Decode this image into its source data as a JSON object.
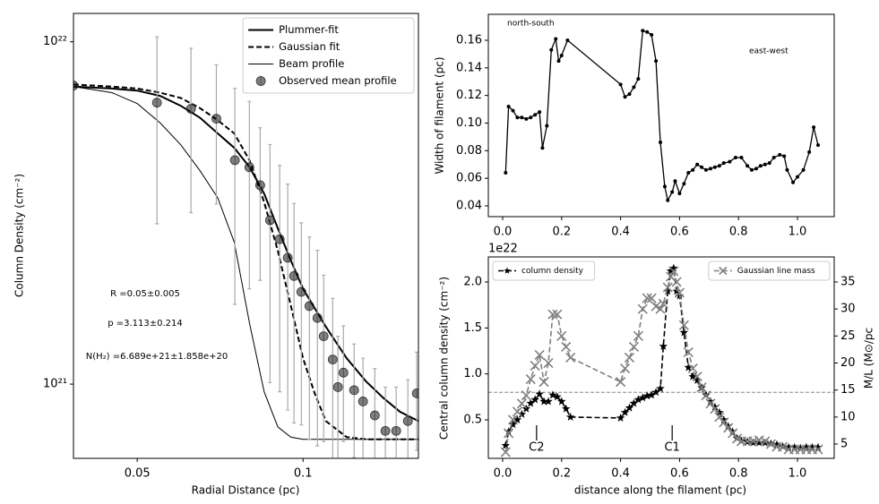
{
  "chart_data": [
    {
      "type": "line",
      "xscale": "log",
      "yscale": "log",
      "xlabel": "Radial Distance (pc)",
      "ylabel": "Column Density (cm⁻²)",
      "xlim": [
        0.0383,
        0.162
      ],
      "ylim": [
        6.07e+20,
        1.21e+22
      ],
      "xticks": [
        0.05,
        0.1
      ],
      "yticks": [
        {
          "value": 1e+21,
          "label": "10²¹"
        },
        {
          "value": 1e+22,
          "label": "10²²"
        }
      ],
      "legend": "upper right",
      "annotations": [
        "R =0.05±0.005",
        "p =3.113±0.214",
        "N(H₂) =6.689e+21±1.858e+20"
      ],
      "series": [
        {
          "name": "Plummer-fit",
          "color": "#000000",
          "linestyle": "solid",
          "linewidth": 2,
          "marker": "none",
          "x": [
            0.0383,
            0.045,
            0.05,
            0.055,
            0.06,
            0.065,
            0.07,
            0.075,
            0.08,
            0.085,
            0.09,
            0.095,
            0.1,
            0.11,
            0.12,
            0.13,
            0.14,
            0.15,
            0.162
          ],
          "values": [
            7.4e+21,
            7.3e+21,
            7.2e+21,
            6.95e+21,
            6.5e+21,
            6e+21,
            5.4e+21,
            4.9e+21,
            4.3e+21,
            3.6e+21,
            2.85e+21,
            2.3e+21,
            1.9e+21,
            1.47e+21,
            1.19e+21,
            1.02e+21,
            9.1e+20,
            8.3e+20,
            7.8e+20
          ]
        },
        {
          "name": "Gaussian fit",
          "color": "#000000",
          "linestyle": "dashed",
          "linewidth": 2,
          "marker": "none",
          "x": [
            0.0383,
            0.045,
            0.05,
            0.055,
            0.06,
            0.065,
            0.07,
            0.075,
            0.08,
            0.085,
            0.09,
            0.095,
            0.1,
            0.105,
            0.11,
            0.12,
            0.13,
            0.14,
            0.15,
            0.162
          ],
          "values": [
            7.5e+21,
            7.4e+21,
            7.3e+21,
            7.1e+21,
            6.85e+21,
            6.4e+21,
            5.9e+21,
            5.4e+21,
            4.5e+21,
            3.4e+21,
            2.45e+21,
            1.7e+21,
            1.19e+21,
            9.4e+20,
            7.8e+20,
            7e+20,
            6.9e+20,
            6.9e+20,
            6.9e+20,
            6.9e+20
          ]
        },
        {
          "name": "Beam profile",
          "color": "#000000",
          "linestyle": "solid",
          "linewidth": 1,
          "marker": "none",
          "x": [
            0.0383,
            0.045,
            0.05,
            0.055,
            0.06,
            0.065,
            0.07,
            0.075,
            0.08,
            0.085,
            0.09,
            0.095,
            0.1,
            0.11,
            0.12,
            0.13,
            0.14,
            0.15,
            0.162
          ],
          "values": [
            7.4e+21,
            7.1e+21,
            6.6e+21,
            5.8e+21,
            5e+21,
            4.2e+21,
            3.5e+21,
            2.6e+21,
            1.5e+21,
            9.5e+20,
            7.5e+20,
            7e+20,
            6.9e+20,
            6.9e+20,
            6.9e+20,
            6.9e+20,
            6.9e+20,
            6.9e+20,
            6.9e+20
          ]
        },
        {
          "name": "Observed mean profile",
          "color": "#555555",
          "linestyle": "none",
          "marker": "o",
          "x": [
            0.0383,
            0.0543,
            0.0626,
            0.0696,
            0.0752,
            0.0799,
            0.0836,
            0.0871,
            0.0907,
            0.0938,
            0.0963,
            0.0993,
            0.1027,
            0.1062,
            0.109,
            0.1132,
            0.1157,
            0.1184,
            0.1238,
            0.1285,
            0.135,
            0.1411,
            0.1476,
            0.155,
            0.1609
          ],
          "values": [
            7.45e+21,
            6.64e+21,
            6.37e+21,
            5.96e+21,
            4.51e+21,
            4.3e+21,
            3.81e+21,
            3.01e+21,
            2.65e+21,
            2.34e+21,
            2.07e+21,
            1.86e+21,
            1.69e+21,
            1.56e+21,
            1.38e+21,
            1.18e+21,
            9.8e+20,
            1.08e+21,
            9.6e+20,
            8.9e+20,
            8.1e+20,
            7.3e+20,
            7.3e+20,
            7.8e+20,
            9.4e+20
          ],
          "errors": [
            0,
            3.7e+21,
            3.2e+21,
            2.6e+21,
            2.8e+21,
            2.4e+21,
            1.8e+21,
            2e+21,
            1.7e+21,
            1.5e+21,
            1.3e+21,
            1.1e+21,
            1e+21,
            9e+20,
            7e+20,
            6e+20,
            4e+20,
            4e+20,
            3.5e+20,
            3e+20,
            3e+20,
            2.5e+20,
            2.5e+20,
            2.5e+20,
            3e+20
          ]
        }
      ]
    },
    {
      "type": "line",
      "ylabel": "Width of filament (pc)",
      "xlim": [
        -0.0486,
        1.1246
      ],
      "ylim": [
        0.0322,
        0.1788
      ],
      "xticks": [
        {
          "value": 0,
          "label": "0.0"
        },
        0.2,
        0.4,
        0.6,
        0.8,
        {
          "value": 1,
          "label": "1.0"
        }
      ],
      "yticks": [
        0.04,
        0.06,
        0.08,
        {
          "value": 0.1,
          "label": "0.10"
        },
        0.12,
        0.14,
        0.16
      ],
      "annotations": [
        "north-south",
        "east-west"
      ],
      "x": [
        0.01,
        0.02,
        0.035,
        0.05,
        0.065,
        0.08,
        0.095,
        0.11,
        0.125,
        0.135,
        0.15,
        0.165,
        0.18,
        0.19,
        0.2,
        0.22,
        0.4,
        0.415,
        0.43,
        0.445,
        0.46,
        0.475,
        0.49,
        0.505,
        0.52,
        0.535,
        0.55,
        0.56,
        0.575,
        0.585,
        0.6,
        0.615,
        0.63,
        0.645,
        0.66,
        0.675,
        0.69,
        0.705,
        0.72,
        0.735,
        0.75,
        0.77,
        0.79,
        0.81,
        0.83,
        0.845,
        0.86,
        0.875,
        0.89,
        0.905,
        0.92,
        0.94,
        0.955,
        0.965,
        0.985,
        1.0,
        1.02,
        1.04,
        1.055,
        1.07
      ],
      "series": [
        {
          "color": "#000000",
          "linestyle": "solid",
          "linewidth": 1.3,
          "marker": ".",
          "values": [
            0.064,
            0.112,
            0.109,
            0.104,
            0.104,
            0.103,
            0.104,
            0.106,
            0.108,
            0.082,
            0.098,
            0.153,
            0.161,
            0.145,
            0.149,
            0.16,
            0.128,
            0.119,
            0.121,
            0.126,
            0.132,
            0.167,
            0.166,
            0.164,
            0.145,
            0.086,
            0.054,
            0.044,
            0.05,
            0.058,
            0.049,
            0.056,
            0.064,
            0.066,
            0.07,
            0.068,
            0.066,
            0.067,
            0.068,
            0.069,
            0.071,
            0.072,
            0.075,
            0.075,
            0.069,
            0.066,
            0.067,
            0.069,
            0.07,
            0.071,
            0.075,
            0.077,
            0.076,
            0.066,
            0.057,
            0.061,
            0.066,
            0.079,
            0.097,
            0.084
          ]
        }
      ]
    },
    {
      "type": "line",
      "xlabel": "distance along the filament (pc)",
      "ylabel": "Central column density (cm⁻²)",
      "y2label": "M/L (M⊙/pc",
      "offset_text": "1e22",
      "xlim": [
        -0.0486,
        1.1246
      ],
      "ylim": [
        0.081,
        2.273
      ],
      "y2lim": [
        2.35,
        39.64
      ],
      "xticks": [
        {
          "value": 0,
          "label": "0.0"
        },
        0.2,
        0.4,
        0.6,
        0.8,
        {
          "value": 1,
          "label": "1.0"
        }
      ],
      "yticks": [
        0.5,
        {
          "value": 1,
          "label": "1.0"
        },
        1.5,
        {
          "value": 2,
          "label": "2.0"
        }
      ],
      "y2ticks": [
        5,
        10,
        15,
        20,
        25,
        30,
        35
      ],
      "legend": "upper left",
      "y2_legend": "upper right",
      "hline": 0.8,
      "cores": [
        {
          "label": "C2",
          "x": 0.115
        },
        {
          "label": "C1",
          "x": 0.575
        }
      ],
      "x": [
        0.01,
        0.02,
        0.035,
        0.05,
        0.065,
        0.08,
        0.095,
        0.11,
        0.125,
        0.14,
        0.155,
        0.17,
        0.185,
        0.2,
        0.215,
        0.23,
        0.4,
        0.415,
        0.43,
        0.445,
        0.46,
        0.475,
        0.49,
        0.505,
        0.52,
        0.535,
        0.545,
        0.56,
        0.57,
        0.58,
        0.59,
        0.6,
        0.615,
        0.63,
        0.645,
        0.66,
        0.675,
        0.69,
        0.705,
        0.72,
        0.735,
        0.75,
        0.765,
        0.78,
        0.795,
        0.81,
        0.83,
        0.85,
        0.87,
        0.89,
        0.91,
        0.93,
        0.95,
        0.97,
        0.99,
        1.01,
        1.03,
        1.05,
        1.07
      ],
      "series": [
        {
          "name": "column density",
          "color": "#000000",
          "linestyle": "dashed",
          "linewidth": 1.6,
          "marker": "*",
          "values": [
            0.22,
            0.37,
            0.45,
            0.5,
            0.56,
            0.62,
            0.68,
            0.72,
            0.78,
            0.7,
            0.7,
            0.77,
            0.75,
            0.7,
            0.62,
            0.53,
            0.52,
            0.58,
            0.63,
            0.68,
            0.72,
            0.74,
            0.76,
            0.77,
            0.8,
            0.84,
            1.3,
            1.9,
            2.12,
            2.15,
            1.9,
            1.85,
            1.45,
            1.07,
            0.97,
            0.93,
            0.85,
            0.77,
            0.7,
            0.64,
            0.58,
            0.5,
            0.43,
            0.37,
            0.3,
            0.27,
            0.26,
            0.25,
            0.25,
            0.25,
            0.24,
            0.23,
            0.21,
            0.2,
            0.2,
            0.19,
            0.2,
            0.2,
            0.2
          ]
        },
        {
          "name": "Gaussian line mass",
          "color": "#808080",
          "linestyle": "dashed",
          "linewidth": 1.6,
          "marker": "x",
          "axis": "y2",
          "values": [
            3.5,
            7,
            9.5,
            11,
            12.5,
            14,
            17,
            19.5,
            21.5,
            16.5,
            20,
            29,
            29,
            25,
            23,
            21,
            16.5,
            19,
            21,
            23,
            25,
            30,
            32,
            32,
            30.5,
            30,
            31,
            34,
            36,
            37,
            35,
            33,
            27,
            22,
            19,
            17.5,
            15.5,
            14,
            12.5,
            11.5,
            10,
            9,
            8,
            7,
            6,
            5.5,
            5.5,
            5.5,
            5.7,
            5.5,
            5,
            4.5,
            4.5,
            4,
            4,
            4,
            4,
            4,
            4
          ]
        }
      ]
    }
  ]
}
